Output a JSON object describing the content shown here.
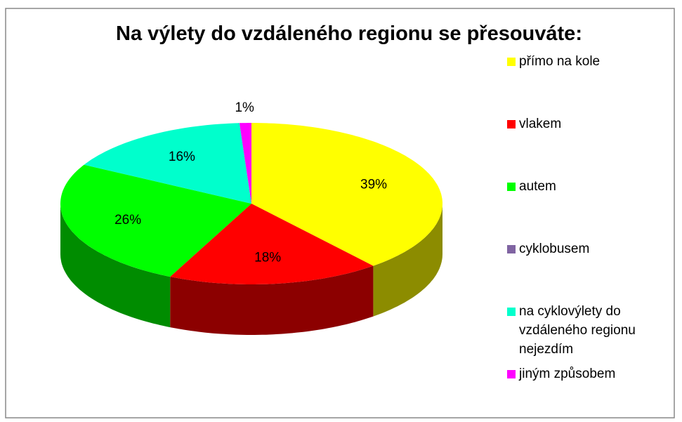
{
  "chart_data": {
    "type": "pie",
    "title": "Na výlety do vzdáleného regionu se přesouváte:",
    "categories": [
      "přímo na kole",
      "vlakem",
      "autem",
      "cyklobusem",
      "na cyklovýlety do vzdáleného regionu nejezdím",
      "jiným způsobem"
    ],
    "values": [
      39,
      18,
      26,
      0,
      16,
      1
    ],
    "value_labels": [
      "39%",
      "18%",
      "26%",
      null,
      "16%",
      "1%"
    ],
    "colors": [
      "#ffff00",
      "#ff0000",
      "#00ff00",
      "#8064a2",
      "#00ffcc",
      "#ff00ff"
    ],
    "legend": "right"
  }
}
